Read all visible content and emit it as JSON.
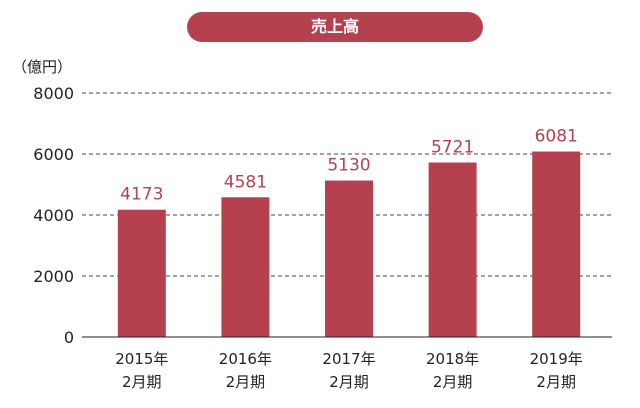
{
  "chart_data": {
    "type": "bar",
    "title": "売上高",
    "unit_label": "（億円）",
    "categories": [
      [
        "2015年",
        "2月期"
      ],
      [
        "2016年",
        "2月期"
      ],
      [
        "2017年",
        "2月期"
      ],
      [
        "2018年",
        "2月期"
      ],
      [
        "2019年",
        "2月期"
      ]
    ],
    "values": [
      4173,
      4581,
      5130,
      5721,
      6081
    ],
    "value_labels": [
      "4173",
      "4581",
      "5130",
      "5721",
      "6081"
    ],
    "ylim": [
      0,
      8000
    ],
    "yticks": [
      0,
      2000,
      4000,
      6000,
      8000
    ],
    "grid": true,
    "bar_color": "#b5414f"
  }
}
